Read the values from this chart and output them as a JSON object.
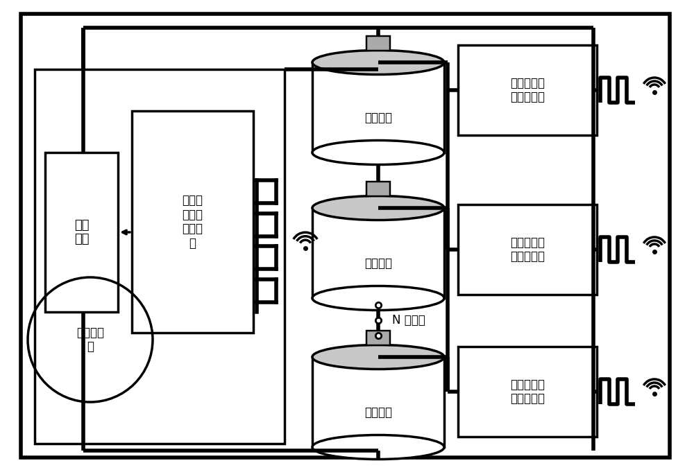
{
  "bg_color": "#ffffff",
  "lc": "#000000",
  "fig_width": 10.0,
  "fig_height": 6.78,
  "font_size": 12,
  "label_power_switch": "功率\n开关",
  "label_control": "外部数\n据接收\n控制模\n块",
  "label_battery_load": "电池组负\n载",
  "label_battery": "单体电池",
  "label_module": "电池健康状\n况检测模块",
  "label_n_cells": "N 节电池"
}
